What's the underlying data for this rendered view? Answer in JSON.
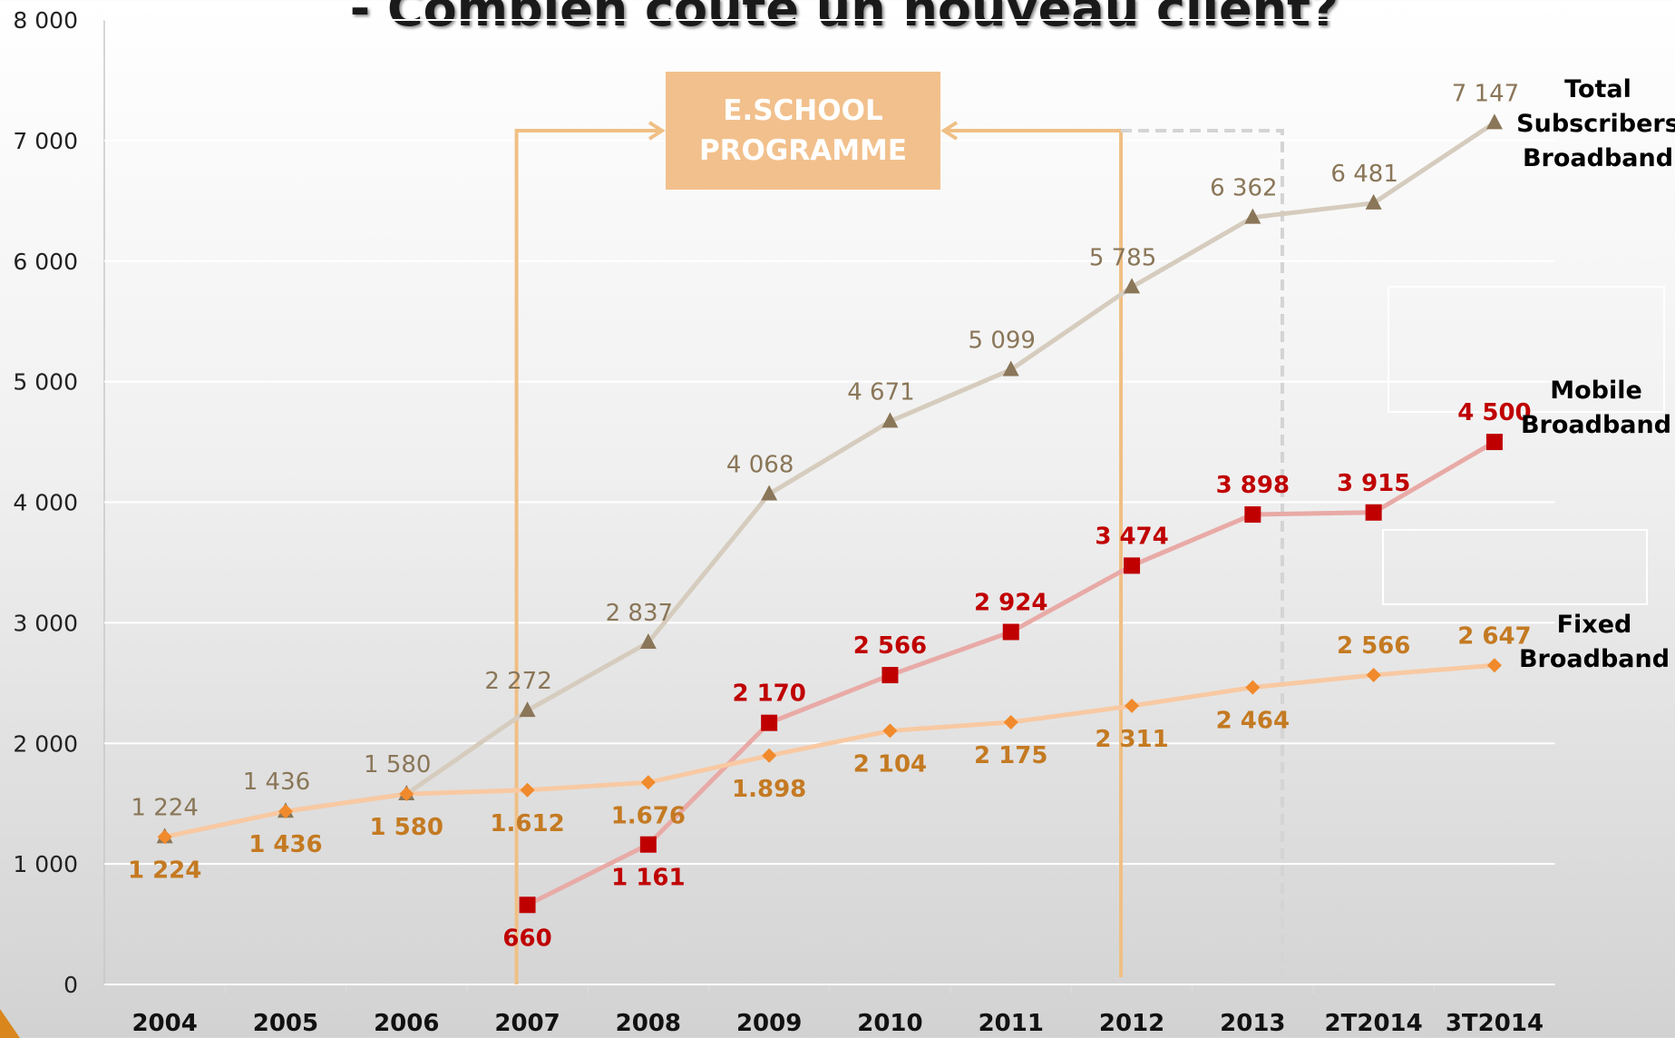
{
  "chart_data": {
    "type": "line",
    "title": "- Combien coûte un nouveau client?",
    "annotation": [
      "E.SCHOOL",
      "PROGRAMME"
    ],
    "categories": [
      "2004",
      "2005",
      "2006",
      "2007",
      "2008",
      "2009",
      "2010",
      "2011",
      "2012",
      "2013",
      "2T2014",
      "3T2014"
    ],
    "ylim": [
      0,
      8000
    ],
    "yticks": [
      0,
      {
        "value": 1000,
        "label": "1 000"
      },
      {
        "value": 2000,
        "label": "2 000"
      },
      {
        "value": 3000,
        "label": "3 000"
      },
      {
        "value": 4000,
        "label": "4 000"
      },
      {
        "value": 5000,
        "label": "5 000"
      },
      {
        "value": 6000,
        "label": "6 000"
      },
      {
        "value": 7000,
        "label": "7 000"
      },
      {
        "value": 8000,
        "label": "8 000"
      }
    ],
    "grid": true,
    "series": [
      {
        "name": "Total Subscribers Broadband",
        "color": "#d6ccbe",
        "marker_color": "#8a7658",
        "label_color": "#8a7658",
        "marker": "triangle",
        "values": [
          1224,
          1436,
          1580,
          2272,
          2837,
          4068,
          4671,
          5099,
          5785,
          6362,
          6481,
          7147
        ],
        "value_labels": [
          "1 224",
          "1 436",
          "1 580",
          "2 272",
          "2 837",
          "4 068",
          "4 671",
          "5 099",
          "5 785",
          "6 362",
          "6 481",
          "7 147"
        ]
      },
      {
        "name": "Mobile Broadband",
        "color": "#e8aaa6",
        "marker_color": "#c00000",
        "label_color": "#c00000",
        "marker": "square",
        "values": [
          null,
          null,
          null,
          660,
          1161,
          2170,
          2566,
          2924,
          3474,
          3898,
          3915,
          4500
        ],
        "value_labels": [
          null,
          null,
          null,
          "660",
          "1 161",
          "2 170",
          "2 566",
          "2 924",
          "3 474",
          "3 898",
          "3 915",
          "4 500"
        ]
      },
      {
        "name": "Fixed Broadband",
        "color": "#f8c9a2",
        "marker_color": "#f08a2c",
        "label_color": "#c47a22",
        "marker": "diamond",
        "values": [
          1224,
          1436,
          1580,
          1612,
          1676,
          1898,
          2104,
          2175,
          2311,
          2464,
          2566,
          2647
        ],
        "value_labels": [
          "1 224",
          "1 436",
          "1 580",
          "1.612",
          "1.676",
          "1.898",
          "2 104",
          "2 175",
          "2 311",
          "2 464",
          "2 566",
          "2 647"
        ]
      }
    ]
  }
}
